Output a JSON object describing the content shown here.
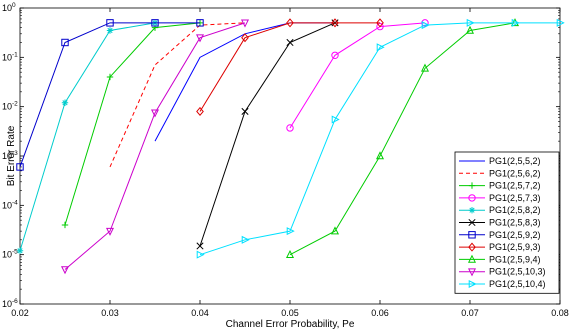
{
  "chart_data": {
    "type": "line",
    "xlabel": "Channel Error Probability, Pe",
    "ylabel": "Bit Error Rate",
    "xlim": [
      0.02,
      0.08
    ],
    "ylim": [
      1e-06,
      1
    ],
    "yscale": "log",
    "x_ticks": [
      0.02,
      0.03,
      0.04,
      0.05,
      0.06,
      0.07,
      0.08
    ],
    "x_tick_labels": [
      "0.02",
      "0.03",
      "0.04",
      "0.05",
      "0.06",
      "0.07",
      "0.08"
    ],
    "y_ticks": [
      1e-06,
      1e-05,
      0.0001,
      0.001,
      0.01,
      0.1,
      1
    ],
    "y_tick_labels": [
      {
        "base": "10",
        "exp": "-6"
      },
      {
        "base": "10",
        "exp": "-5"
      },
      {
        "base": "10",
        "exp": "-4"
      },
      {
        "base": "10",
        "exp": "-3"
      },
      {
        "base": "10",
        "exp": "-2"
      },
      {
        "base": "10",
        "exp": "-1"
      },
      {
        "base": "10",
        "exp": "0"
      }
    ],
    "grid": false,
    "legend_position": "bottom-right",
    "series": [
      {
        "name": "PG1(2,5,5,2)",
        "color": "#0000ff",
        "dash": "solid",
        "marker": "none",
        "x": [
          0.035,
          0.04,
          0.045,
          0.05,
          0.055
        ],
        "y": [
          0.002,
          0.1,
          0.3,
          0.5,
          0.5
        ]
      },
      {
        "name": "PG1(2,5,6,2)",
        "color": "#ff0000",
        "dash": "dashed",
        "marker": "none",
        "x": [
          0.03,
          0.035,
          0.04,
          0.045
        ],
        "y": [
          0.0006,
          0.07,
          0.45,
          0.5
        ]
      },
      {
        "name": "PG1(2,5,7,2)",
        "color": "#00cc00",
        "dash": "solid",
        "marker": "plus",
        "x": [
          0.025,
          0.03,
          0.035,
          0.04
        ],
        "y": [
          4e-05,
          0.04,
          0.4,
          0.5
        ]
      },
      {
        "name": "PG1(2,5,7,3)",
        "color": "#ff00ff",
        "dash": "solid",
        "marker": "circle",
        "x": [
          0.05,
          0.055,
          0.06,
          0.065
        ],
        "y": [
          0.0037,
          0.11,
          0.42,
          0.5
        ]
      },
      {
        "name": "PG1(2,5,8,2)",
        "color": "#00cccc",
        "dash": "solid",
        "marker": "asterisk",
        "x": [
          0.02,
          0.025,
          0.03,
          0.035
        ],
        "y": [
          1.2e-05,
          0.012,
          0.35,
          0.5
        ]
      },
      {
        "name": "PG1(2,5,8,3)",
        "color": "#000000",
        "dash": "solid",
        "marker": "x",
        "x": [
          0.04,
          0.045,
          0.05,
          0.055
        ],
        "y": [
          1.5e-05,
          0.008,
          0.2,
          0.5
        ]
      },
      {
        "name": "PG1(2,5,9,2)",
        "color": "#0000cc",
        "dash": "solid",
        "marker": "square",
        "x": [
          0.02,
          0.025,
          0.03,
          0.035,
          0.04
        ],
        "y": [
          0.0006,
          0.2,
          0.5,
          0.5,
          0.5
        ]
      },
      {
        "name": "PG1(2,5,9,3)",
        "color": "#dd0000",
        "dash": "solid",
        "marker": "diamond",
        "x": [
          0.04,
          0.045,
          0.05,
          0.055,
          0.06
        ],
        "y": [
          0.008,
          0.25,
          0.5,
          0.5,
          0.5
        ]
      },
      {
        "name": "PG1(2,5,9,4)",
        "color": "#00cc00",
        "dash": "solid",
        "marker": "triangle-up",
        "x": [
          0.05,
          0.055,
          0.06,
          0.065,
          0.07,
          0.075
        ],
        "y": [
          1e-05,
          3e-05,
          0.001,
          0.06,
          0.35,
          0.5
        ]
      },
      {
        "name": "PG1(2,5,10,3)",
        "color": "#cc00cc",
        "dash": "solid",
        "marker": "triangle-down",
        "x": [
          0.025,
          0.03,
          0.035,
          0.04,
          0.045
        ],
        "y": [
          5e-06,
          3e-05,
          0.0075,
          0.25,
          0.5
        ]
      },
      {
        "name": "PG1(2,5,10,4)",
        "color": "#00e0ff",
        "dash": "solid",
        "marker": "triangle-right",
        "x": [
          0.04,
          0.045,
          0.05,
          0.055,
          0.06,
          0.065,
          0.07,
          0.075,
          0.08
        ],
        "y": [
          1e-05,
          2e-05,
          3e-05,
          0.0055,
          0.16,
          0.45,
          0.5,
          0.5,
          0.5
        ]
      }
    ]
  }
}
